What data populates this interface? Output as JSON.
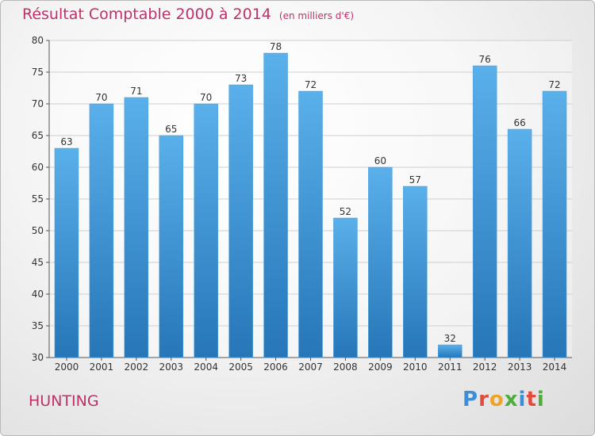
{
  "header": {
    "title": "Résultat Comptable 2000 à 2014",
    "subtitle": "(en milliers d'€)"
  },
  "footer": {
    "place": "HUNTING",
    "logo": "Proxiti"
  },
  "colors": {
    "title": "#c0306a",
    "bar_top": "#5ab0ea",
    "bar_bottom": "#2676b8"
  },
  "chart_data": {
    "type": "bar",
    "title": "Résultat Comptable 2000 à 2014",
    "subtitle": "(en milliers d'€)",
    "categories": [
      "2000",
      "2001",
      "2002",
      "2003",
      "2004",
      "2005",
      "2006",
      "2007",
      "2008",
      "2009",
      "2010",
      "2011",
      "2012",
      "2013",
      "2014"
    ],
    "values": [
      63,
      70,
      71,
      65,
      70,
      73,
      78,
      72,
      52,
      60,
      57,
      32,
      76,
      66,
      72
    ],
    "ylim": [
      30,
      80
    ],
    "yticks": [
      30,
      35,
      40,
      45,
      50,
      55,
      60,
      65,
      70,
      75,
      80
    ],
    "grid": true,
    "xlabel": "",
    "ylabel": ""
  }
}
